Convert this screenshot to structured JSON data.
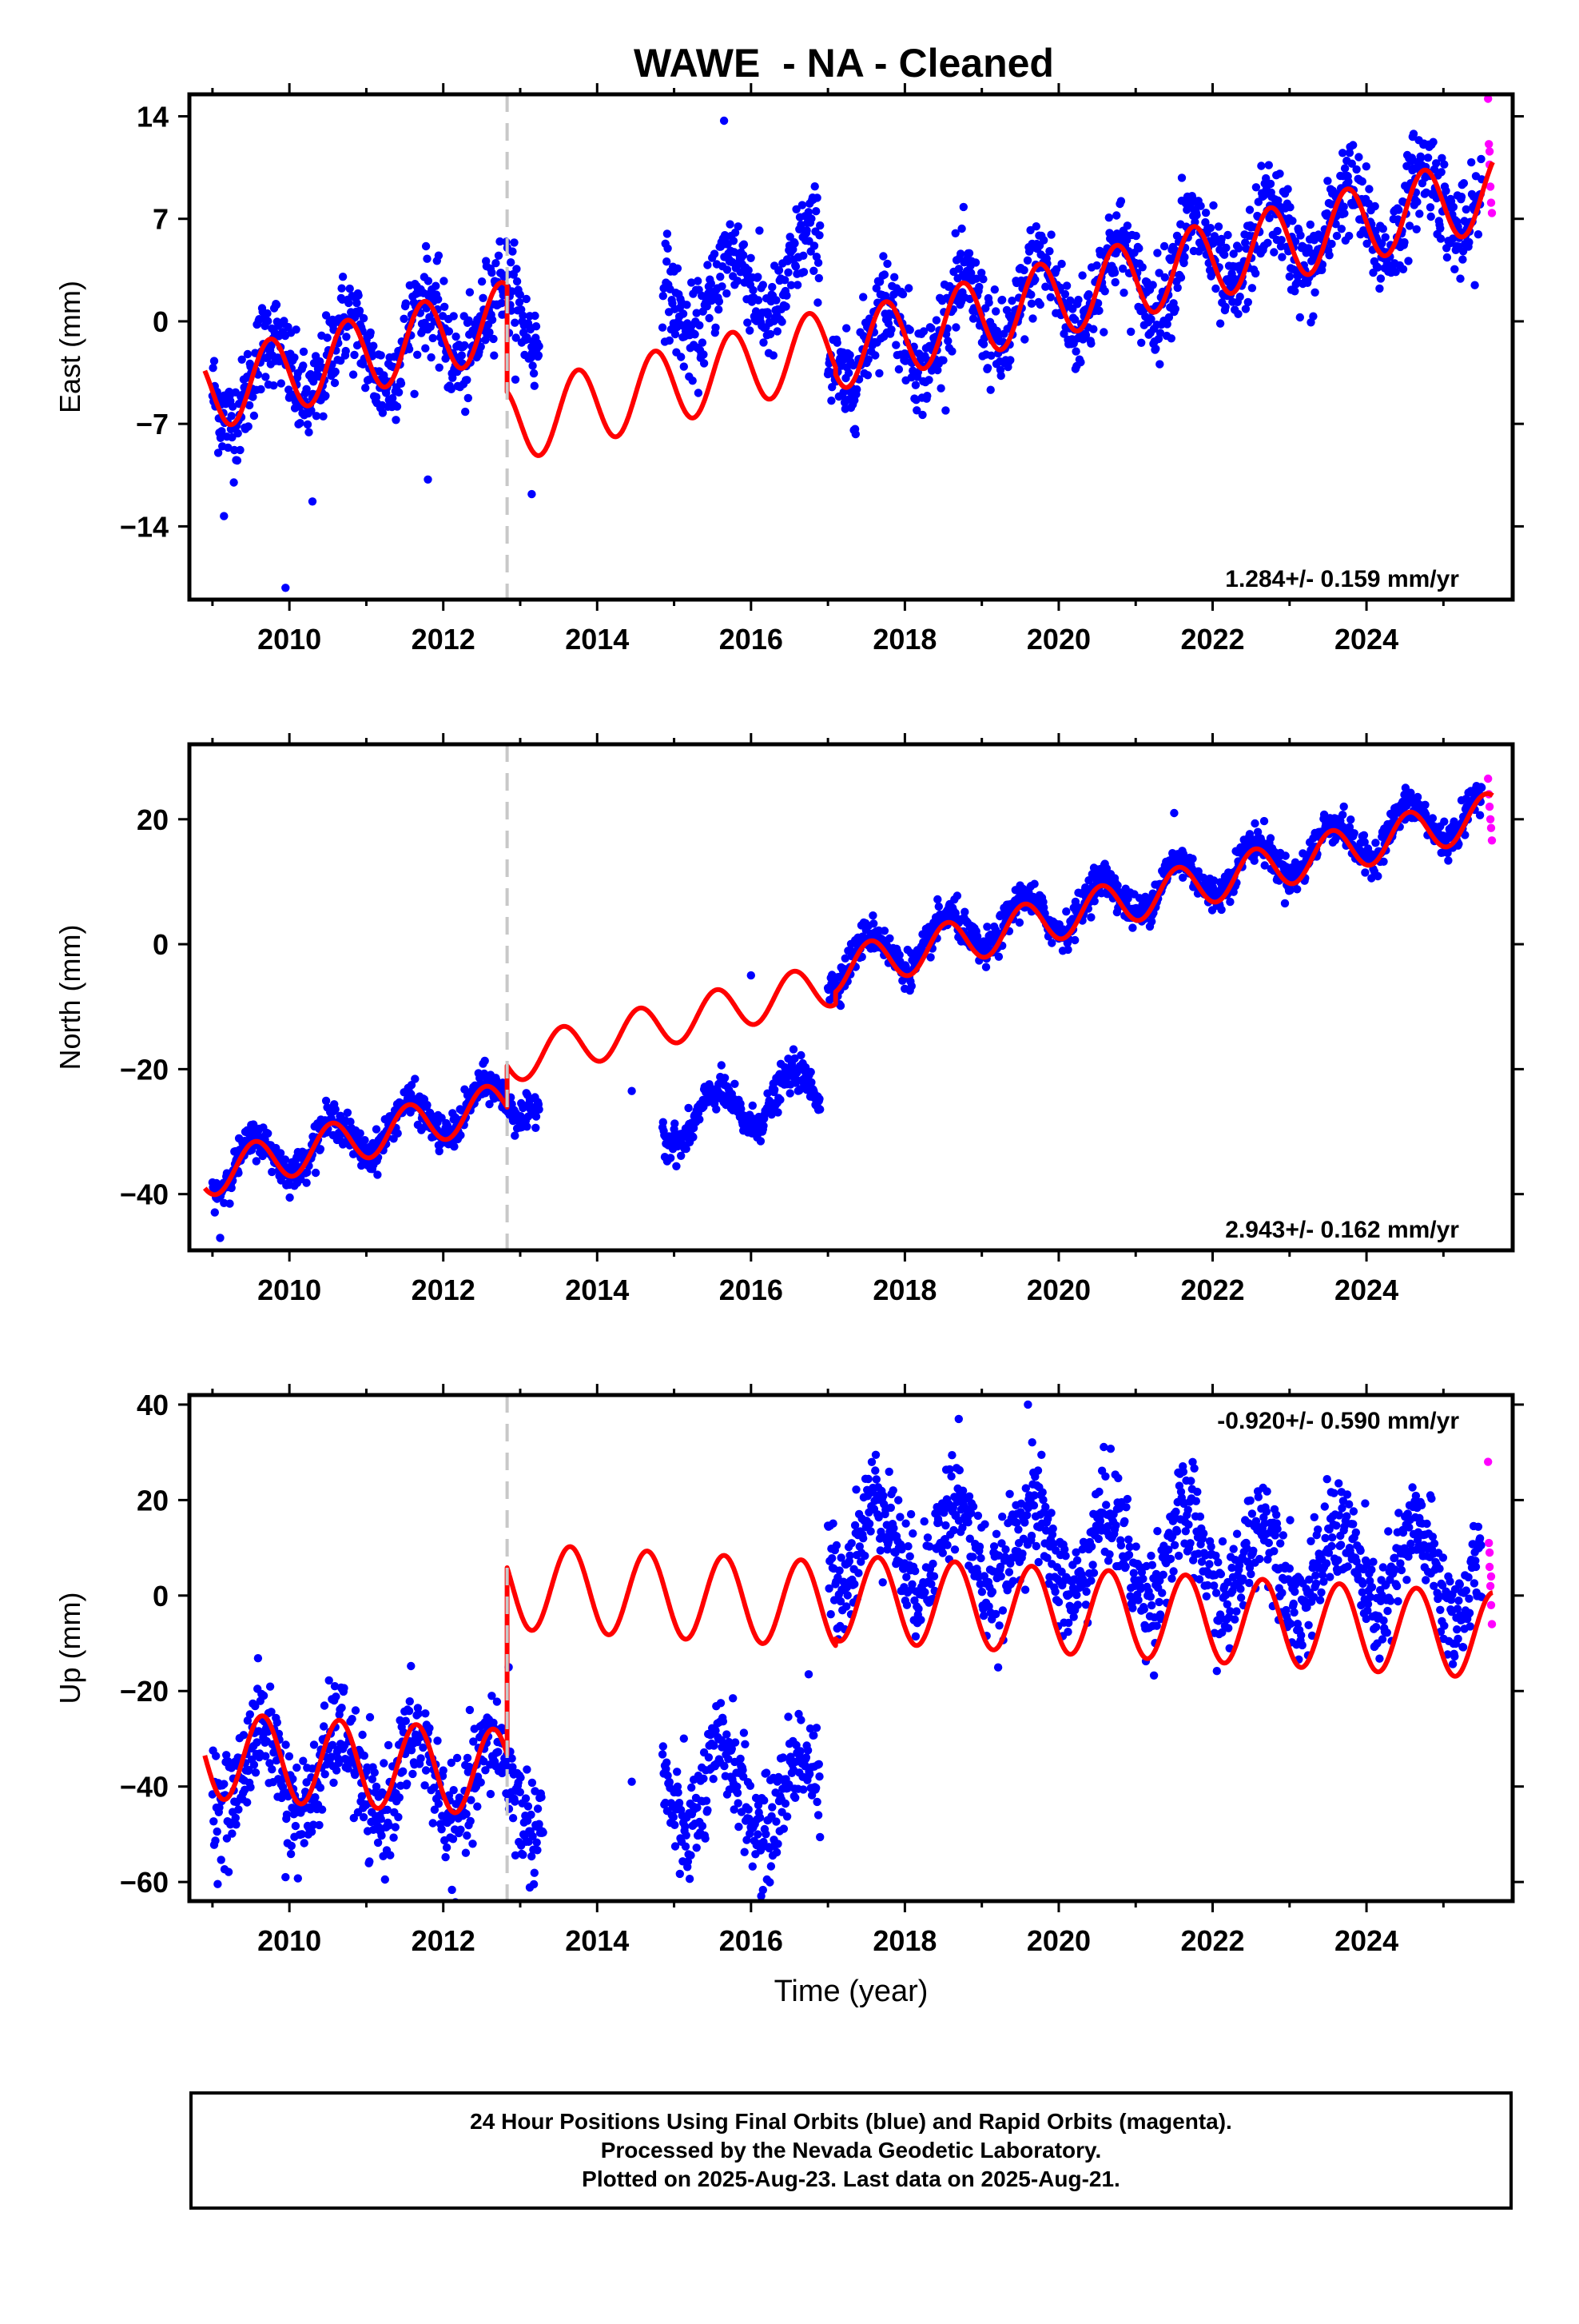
{
  "title": "WAWE  - NA - Cleaned",
  "footer": {
    "line1": "24 Hour Positions Using Final Orbits (blue) and Rapid Orbits (magenta).",
    "line2": "Processed by the Nevada Geodetic Laboratory.",
    "line3": "Plotted on 2025-Aug-23. Last data on 2025-Aug-21."
  },
  "colors": {
    "final_orbits": "#0000ff",
    "rapid_orbits": "#ff00ff",
    "model": "#ff0000",
    "equipment_change": "#c8c8c8"
  },
  "chart_data": [
    {
      "type": "scatter",
      "panel": "east",
      "ylabel": "East (mm)",
      "xlabel": "",
      "xlim": [
        2008.7,
        2025.9
      ],
      "ylim": [
        -19,
        15.5
      ],
      "yticks": [
        14,
        7,
        0,
        -7,
        -14
      ],
      "xticks": [
        2010,
        2012,
        2014,
        2016,
        2018,
        2020,
        2022,
        2024
      ],
      "rate_label": "1.284+/- 0.159 mm/yr",
      "rate_position": "bottom-right",
      "discontinuity": 2012.83,
      "data_spans": [
        [
          2009.0,
          2013.25
        ],
        [
          2014.85,
          2016.9
        ],
        [
          2017.0,
          2025.6
        ]
      ],
      "rapid_span": [
        2025.5,
        2025.64
      ],
      "model": {
        "segments": [
          {
            "t0": 2008.9,
            "t1": 2012.83,
            "offset": -4.9,
            "rate": 1.284,
            "amp": 2.6,
            "peak": 0.75
          },
          {
            "t0": 2012.83,
            "t1": 2017.1,
            "offset": -7.1,
            "rate": 1.284,
            "amp": 2.6,
            "peak": 0.75
          },
          {
            "t0": 2017.1,
            "t1": 2025.64,
            "offset": -2.1,
            "rate": 1.284,
            "amp": 2.6,
            "peak": 0.75
          }
        ]
      },
      "observed": [
        {
          "t0": 2009.0,
          "t1": 2013.25,
          "offset": -4.6,
          "rate": 1.284,
          "amp": 2.6,
          "peak": 0.75,
          "scatter": 1.6
        },
        {
          "t0": 2014.85,
          "t1": 2016.9,
          "offset": 1.0,
          "rate": 1.284,
          "amp": 2.6,
          "peak": 0.75,
          "scatter": 1.6
        },
        {
          "t0": 2017.0,
          "t1": 2025.5,
          "offset": -2.1,
          "rate": 1.284,
          "amp": 2.6,
          "peak": 0.75,
          "scatter": 1.6
        }
      ],
      "outliers": [
        [
          2009.95,
          -18.2
        ],
        [
          2015.65,
          13.7
        ],
        [
          2010.3,
          -12.3
        ],
        [
          2011.8,
          -10.8
        ],
        [
          2009.15,
          -13.3
        ],
        [
          2021.6,
          9.8
        ],
        [
          2024.6,
          12.6
        ],
        [
          2013.15,
          -11.8
        ],
        [
          2023.6,
          8.5
        ],
        [
          2025.3,
          6.0
        ]
      ],
      "rapid_points": [
        [
          2025.58,
          15.2
        ],
        [
          2025.59,
          12.1
        ],
        [
          2025.6,
          10.7
        ],
        [
          2025.61,
          9.2
        ],
        [
          2025.62,
          8.1
        ],
        [
          2025.63,
          7.4
        ],
        [
          2025.6,
          11.6
        ]
      ]
    },
    {
      "type": "scatter",
      "panel": "north",
      "ylabel": "North (mm)",
      "xlabel": "",
      "xlim": [
        2008.7,
        2025.9
      ],
      "ylim": [
        -49,
        32
      ],
      "yticks": [
        20,
        0,
        -20,
        -40
      ],
      "xticks": [
        2010,
        2012,
        2014,
        2016,
        2018,
        2020,
        2022,
        2024
      ],
      "rate_label": "2.943+/- 0.162 mm/yr",
      "rate_position": "bottom-right",
      "discontinuity": 2012.83,
      "data_spans": [
        [
          2009.0,
          2013.25
        ],
        [
          2014.85,
          2016.9
        ],
        [
          2017.0,
          2025.6
        ]
      ],
      "rapid_span": [
        2025.5,
        2025.64
      ],
      "model": {
        "segments": [
          {
            "t0": 2008.9,
            "t1": 2012.83,
            "offset": -37.0,
            "rate": 2.943,
            "amp": 3.5,
            "peak": 0.55
          },
          {
            "t0": 2012.83,
            "t1": 2017.1,
            "offset": -18.8,
            "rate": 2.943,
            "amp": 3.5,
            "peak": 0.55
          },
          {
            "t0": 2017.1,
            "t1": 2025.64,
            "offset": -4.3,
            "rate": 2.943,
            "amp": 3.5,
            "peak": 0.55
          }
        ]
      },
      "observed": [
        {
          "t0": 2009.0,
          "t1": 2013.25,
          "offset": -36.2,
          "rate": 2.943,
          "amp": 3.5,
          "peak": 0.55,
          "scatter": 1.4
        },
        {
          "t0": 2014.85,
          "t1": 2016.9,
          "offset": -29.0,
          "rate": 2.943,
          "amp": 3.5,
          "peak": 0.55,
          "scatter": 1.4
        },
        {
          "t0": 2017.0,
          "t1": 2025.5,
          "offset": -3.5,
          "rate": 2.943,
          "amp": 3.5,
          "peak": 0.55,
          "scatter": 1.4
        }
      ],
      "outliers": [
        [
          2014.45,
          -23.5
        ],
        [
          2016.0,
          -5.0
        ],
        [
          2009.1,
          -47.0
        ],
        [
          2021.5,
          21.0
        ]
      ],
      "rapid_points": [
        [
          2025.58,
          26.5
        ],
        [
          2025.59,
          24.0
        ],
        [
          2025.6,
          22.0
        ],
        [
          2025.61,
          20.0
        ],
        [
          2025.62,
          18.6
        ],
        [
          2025.63,
          16.6
        ]
      ]
    },
    {
      "type": "scatter",
      "panel": "up",
      "ylabel": "Up (mm)",
      "xlabel": "Time (year)",
      "xlim": [
        2008.7,
        2025.9
      ],
      "ylim": [
        -64,
        42
      ],
      "yticks": [
        40,
        20,
        0,
        -20,
        -40,
        -60
      ],
      "xticks": [
        2010,
        2012,
        2014,
        2016,
        2018,
        2020,
        2022,
        2024
      ],
      "rate_label": "-0.920+/- 0.590 mm/yr",
      "rate_position": "top-right",
      "discontinuity": 2012.83,
      "data_spans": [
        [
          2009.0,
          2013.3
        ],
        [
          2014.85,
          2016.9
        ],
        [
          2017.0,
          2025.6
        ]
      ],
      "rapid_span": [
        2025.5,
        2025.64
      ],
      "model": {
        "segments": [
          {
            "t0": 2008.9,
            "t1": 2012.83,
            "offset": -33.5,
            "rate": -0.92,
            "amp": 9.0,
            "peak": 0.65
          },
          {
            "t0": 2012.83,
            "t1": 2017.1,
            "offset": 2.0,
            "rate": -0.92,
            "amp": 9.0,
            "peak": 0.65
          },
          {
            "t0": 2017.1,
            "t1": 2025.64,
            "offset": -0.5,
            "rate": -0.92,
            "amp": 9.0,
            "peak": 0.65
          }
        ]
      },
      "observed": [
        {
          "t0": 2009.0,
          "t1": 2013.3,
          "offset": -36.0,
          "rate": -0.92,
          "amp": 9.0,
          "peak": 0.65,
          "scatter": 5.5
        },
        {
          "t0": 2014.85,
          "t1": 2016.9,
          "offset": -40.5,
          "rate": -0.92,
          "amp": 9.0,
          "peak": 0.65,
          "scatter": 5.5
        },
        {
          "t0": 2017.0,
          "t1": 2025.5,
          "offset": 12.0,
          "rate": -0.92,
          "amp": 9.0,
          "peak": 0.65,
          "scatter": 5.5
        }
      ],
      "outliers": [
        [
          2009.95,
          -59.0
        ],
        [
          2019.6,
          40.0
        ],
        [
          2014.45,
          -39.0
        ],
        [
          2016.75,
          -16.5
        ],
        [
          2012.85,
          -15.0
        ],
        [
          2018.7,
          37.0
        ]
      ],
      "rapid_points": [
        [
          2025.58,
          28.0
        ],
        [
          2025.59,
          11.0
        ],
        [
          2025.6,
          6.0
        ],
        [
          2025.61,
          2.0
        ],
        [
          2025.62,
          -2.0
        ],
        [
          2025.63,
          -6.0
        ],
        [
          2025.6,
          9.0
        ],
        [
          2025.62,
          4.0
        ]
      ]
    }
  ]
}
